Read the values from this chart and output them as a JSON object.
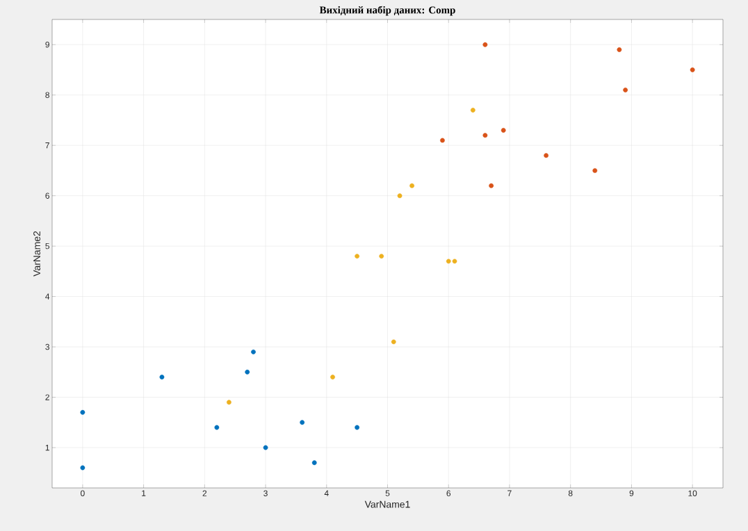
{
  "chart_data": {
    "type": "scatter",
    "title": "Вихідний набір даних: Comp",
    "xlabel": "VarName1",
    "ylabel": "VarName2",
    "xlim": [
      -0.5,
      10.5
    ],
    "ylim": [
      0.2,
      9.5
    ],
    "xticks": [
      0,
      1,
      2,
      3,
      4,
      5,
      6,
      7,
      8,
      9,
      10
    ],
    "yticks": [
      1,
      2,
      3,
      4,
      5,
      6,
      7,
      8,
      9
    ],
    "grid": true,
    "marker": "circle",
    "series": [
      {
        "color": "#0072bd",
        "x": [
          0,
          0,
          1.3,
          2.2,
          2.7,
          2.8,
          3.0,
          3.6,
          3.8,
          4.5
        ],
        "values": [
          1.7,
          0.6,
          2.4,
          1.4,
          2.5,
          2.9,
          1.0,
          1.5,
          0.7,
          1.4
        ]
      },
      {
        "color": "#edb120",
        "x": [
          2.4,
          4.1,
          4.5,
          4.9,
          5.1,
          5.2,
          5.4,
          6.0,
          6.1,
          6.4
        ],
        "values": [
          1.9,
          2.4,
          4.8,
          4.8,
          3.1,
          6.0,
          6.2,
          4.7,
          4.7,
          7.7
        ]
      },
      {
        "color": "#d95319",
        "x": [
          6.6,
          5.9,
          6.6,
          6.9,
          6.7,
          7.6,
          8.4,
          8.8,
          8.9,
          10
        ],
        "values": [
          9.0,
          7.1,
          7.2,
          7.3,
          6.2,
          6.8,
          6.5,
          8.9,
          8.1,
          8.5
        ]
      }
    ]
  }
}
